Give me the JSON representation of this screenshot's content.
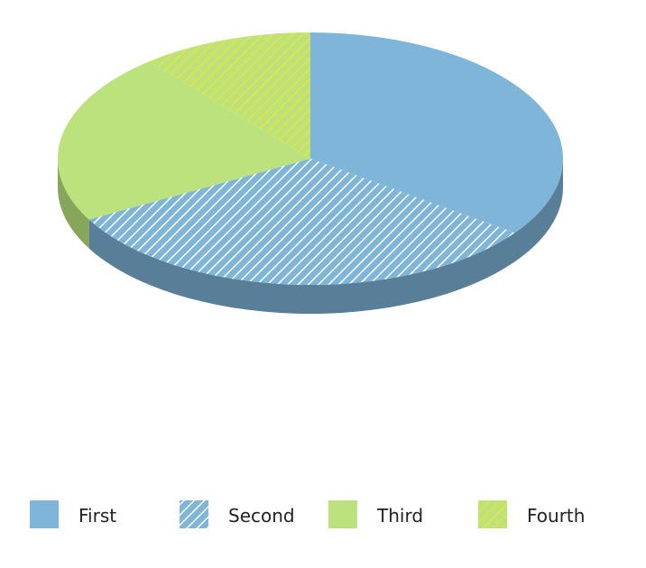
{
  "chart_data": {
    "type": "pie",
    "style": "3d",
    "categories": [
      "First",
      "Second",
      "Third",
      "Fourth"
    ],
    "values": [
      35,
      32,
      22,
      11
    ],
    "colors": [
      "#7fb5d9",
      "#7fb5d9",
      "#bbe27c",
      "#bbe27c"
    ],
    "side_colors": [
      "#587f97",
      "#587f97",
      "#86a75a",
      "#86a75a"
    ],
    "hatched": [
      false,
      true,
      false,
      true
    ],
    "start_angle": 0,
    "direction": "clockwise",
    "legend": {
      "position": "bottom",
      "items": [
        "First",
        "Second",
        "Third",
        "Fourth"
      ]
    }
  }
}
